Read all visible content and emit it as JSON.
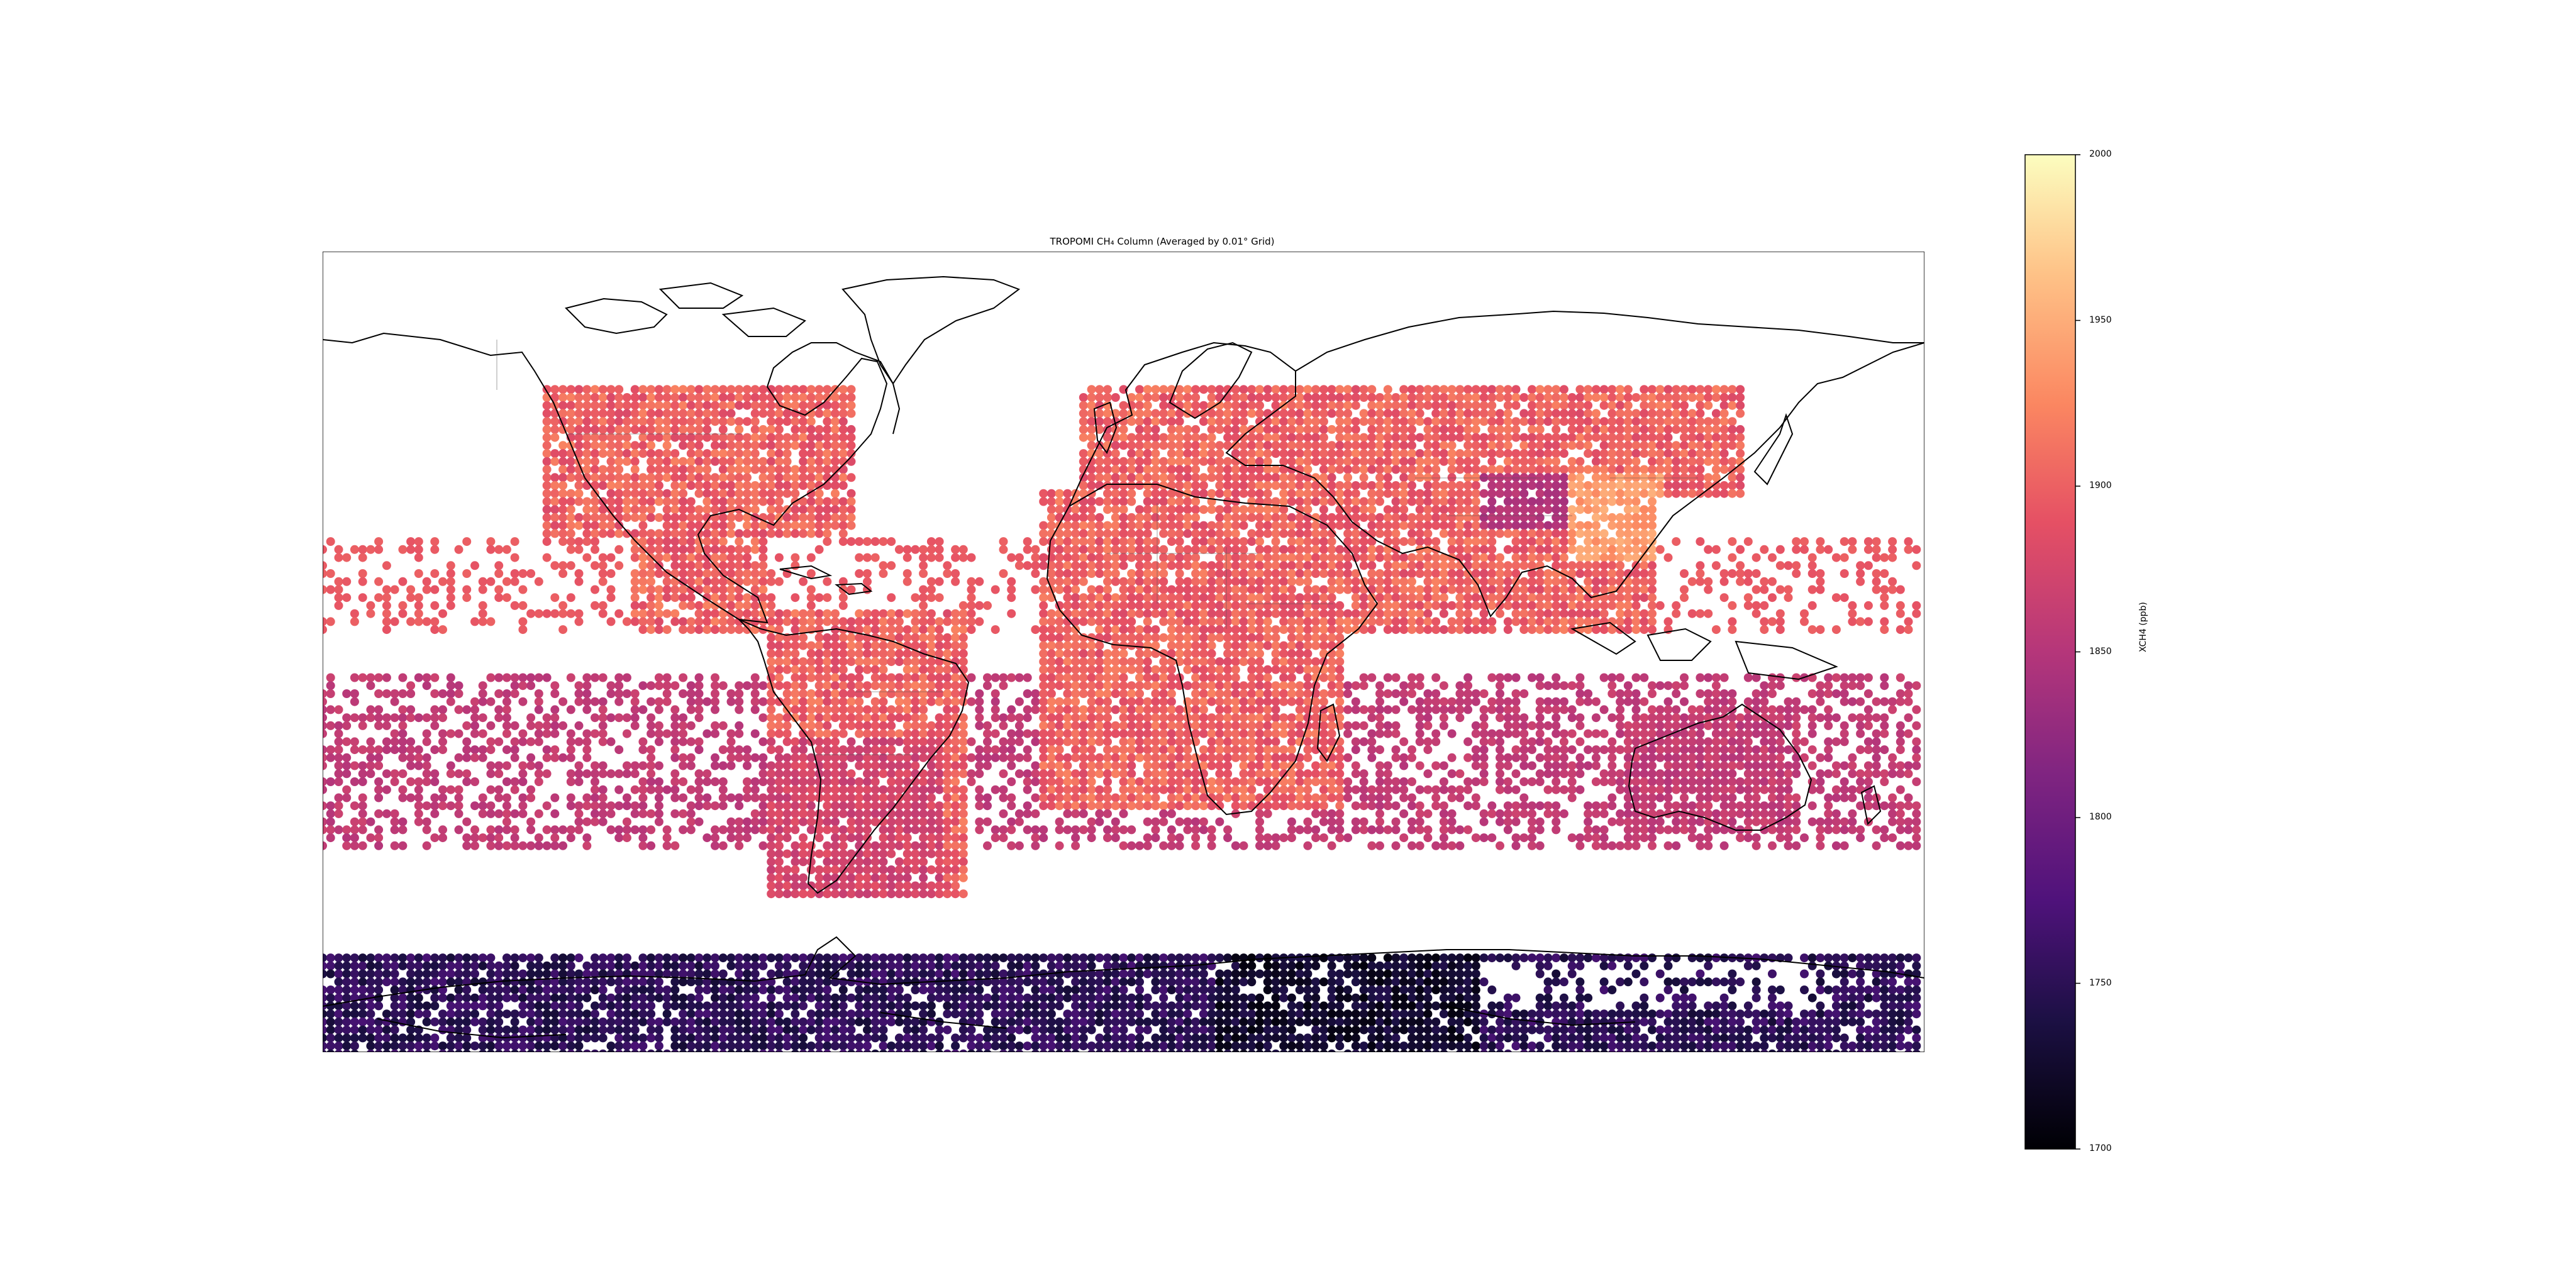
{
  "map": {
    "title": "TROPOMI CH₄ Column (Averaged by 0.01° Grid)",
    "projection": "PlateCarree",
    "extent": {
      "lon": [
        -180,
        180
      ],
      "lat": [
        -90,
        90
      ]
    },
    "data_lat_range": [
      -60,
      60
    ],
    "antarctic_band_lat": [
      -90,
      -70
    ],
    "colormap": "magma",
    "land_outline_color": "#000000",
    "border_color": "#555555"
  },
  "colorbar": {
    "label": "XCH4 (ppb)",
    "vmin": 1700,
    "vmax": 2000,
    "ticks": [
      "1700",
      "1750",
      "1800",
      "1850",
      "1900",
      "1950",
      "2000"
    ],
    "colors": [
      "#000004",
      "#3b0f70",
      "#8c2981",
      "#de4968",
      "#fe9f6d",
      "#fcfdbf"
    ]
  }
}
